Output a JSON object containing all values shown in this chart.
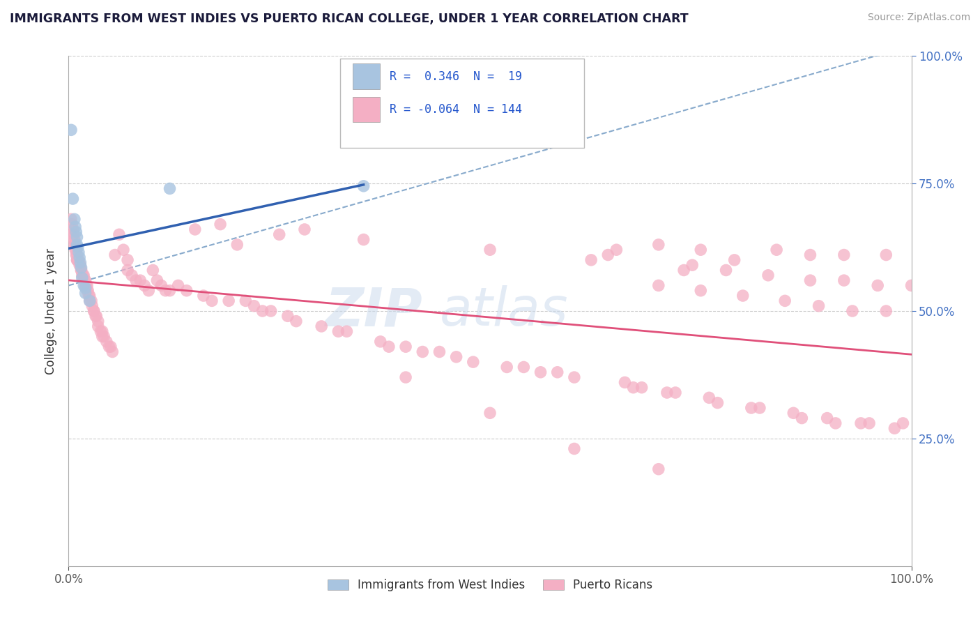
{
  "title": "IMMIGRANTS FROM WEST INDIES VS PUERTO RICAN COLLEGE, UNDER 1 YEAR CORRELATION CHART",
  "source_text": "Source: ZipAtlas.com",
  "ylabel": "College, Under 1 year",
  "xlim": [
    0.0,
    1.0
  ],
  "ylim": [
    0.0,
    1.0
  ],
  "xtick_labels": [
    "0.0%",
    "100.0%"
  ],
  "ytick_labels_right": [
    "25.0%",
    "50.0%",
    "75.0%",
    "100.0%"
  ],
  "blue_color": "#a8c4e0",
  "pink_color": "#f4afc4",
  "blue_line_color": "#3060b0",
  "pink_line_color": "#e0507a",
  "dashed_line_color": "#88aacc",
  "watermark_color": "#c8d8ec",
  "title_color": "#1a1a3a",
  "source_color": "#999999",
  "axis_color": "#aaaaaa",
  "grid_color": "#cccccc",
  "right_tick_color": "#4472c4",
  "bottom_tick_color": "#555555",
  "west_indies_x": [
    0.003,
    0.005,
    0.007,
    0.008,
    0.009,
    0.01,
    0.01,
    0.011,
    0.012,
    0.013,
    0.014,
    0.015,
    0.016,
    0.018,
    0.02,
    0.02,
    0.025,
    0.12,
    0.35
  ],
  "west_indies_y": [
    0.855,
    0.72,
    0.68,
    0.665,
    0.655,
    0.645,
    0.63,
    0.625,
    0.615,
    0.605,
    0.595,
    0.585,
    0.565,
    0.55,
    0.545,
    0.535,
    0.52,
    0.74,
    0.745
  ],
  "puerto_rican_x": [
    0.003,
    0.004,
    0.005,
    0.005,
    0.006,
    0.006,
    0.007,
    0.007,
    0.008,
    0.008,
    0.009,
    0.009,
    0.01,
    0.01,
    0.01,
    0.011,
    0.012,
    0.013,
    0.014,
    0.015,
    0.015,
    0.016,
    0.017,
    0.018,
    0.019,
    0.02,
    0.02,
    0.021,
    0.022,
    0.022,
    0.023,
    0.024,
    0.025,
    0.025,
    0.027,
    0.028,
    0.03,
    0.03,
    0.032,
    0.033,
    0.035,
    0.035,
    0.038,
    0.04,
    0.04,
    0.042,
    0.045,
    0.048,
    0.05,
    0.052,
    0.055,
    0.06,
    0.065,
    0.07,
    0.07,
    0.075,
    0.08,
    0.085,
    0.09,
    0.095,
    0.1,
    0.105,
    0.11,
    0.115,
    0.12,
    0.13,
    0.14,
    0.15,
    0.16,
    0.17,
    0.18,
    0.19,
    0.2,
    0.21,
    0.22,
    0.23,
    0.24,
    0.25,
    0.26,
    0.27,
    0.28,
    0.3,
    0.32,
    0.33,
    0.35,
    0.37,
    0.38,
    0.4,
    0.42,
    0.44,
    0.46,
    0.48,
    0.5,
    0.52,
    0.54,
    0.56,
    0.58,
    0.6,
    0.62,
    0.64,
    0.65,
    0.66,
    0.67,
    0.68,
    0.7,
    0.7,
    0.71,
    0.72,
    0.73,
    0.74,
    0.75,
    0.75,
    0.76,
    0.77,
    0.78,
    0.79,
    0.8,
    0.81,
    0.82,
    0.83,
    0.84,
    0.85,
    0.86,
    0.87,
    0.88,
    0.88,
    0.89,
    0.9,
    0.91,
    0.92,
    0.92,
    0.93,
    0.94,
    0.95,
    0.96,
    0.97,
    0.97,
    0.98,
    0.99,
    1.0,
    0.4,
    0.5,
    0.6,
    0.7
  ],
  "puerto_rican_y": [
    0.68,
    0.67,
    0.66,
    0.65,
    0.65,
    0.64,
    0.64,
    0.63,
    0.63,
    0.62,
    0.62,
    0.61,
    0.61,
    0.6,
    0.6,
    0.6,
    0.6,
    0.59,
    0.59,
    0.58,
    0.58,
    0.57,
    0.57,
    0.57,
    0.56,
    0.56,
    0.55,
    0.55,
    0.55,
    0.54,
    0.54,
    0.53,
    0.53,
    0.52,
    0.52,
    0.51,
    0.5,
    0.5,
    0.49,
    0.49,
    0.48,
    0.47,
    0.46,
    0.46,
    0.45,
    0.45,
    0.44,
    0.43,
    0.43,
    0.42,
    0.61,
    0.65,
    0.62,
    0.6,
    0.58,
    0.57,
    0.56,
    0.56,
    0.55,
    0.54,
    0.58,
    0.56,
    0.55,
    0.54,
    0.54,
    0.55,
    0.54,
    0.66,
    0.53,
    0.52,
    0.67,
    0.52,
    0.63,
    0.52,
    0.51,
    0.5,
    0.5,
    0.65,
    0.49,
    0.48,
    0.66,
    0.47,
    0.46,
    0.46,
    0.64,
    0.44,
    0.43,
    0.43,
    0.42,
    0.42,
    0.41,
    0.4,
    0.62,
    0.39,
    0.39,
    0.38,
    0.38,
    0.37,
    0.6,
    0.61,
    0.62,
    0.36,
    0.35,
    0.35,
    0.63,
    0.55,
    0.34,
    0.34,
    0.58,
    0.59,
    0.62,
    0.54,
    0.33,
    0.32,
    0.58,
    0.6,
    0.53,
    0.31,
    0.31,
    0.57,
    0.62,
    0.52,
    0.3,
    0.29,
    0.56,
    0.61,
    0.51,
    0.29,
    0.28,
    0.56,
    0.61,
    0.5,
    0.28,
    0.28,
    0.55,
    0.61,
    0.5,
    0.27,
    0.28,
    0.55,
    0.37,
    0.3,
    0.23,
    0.19
  ]
}
